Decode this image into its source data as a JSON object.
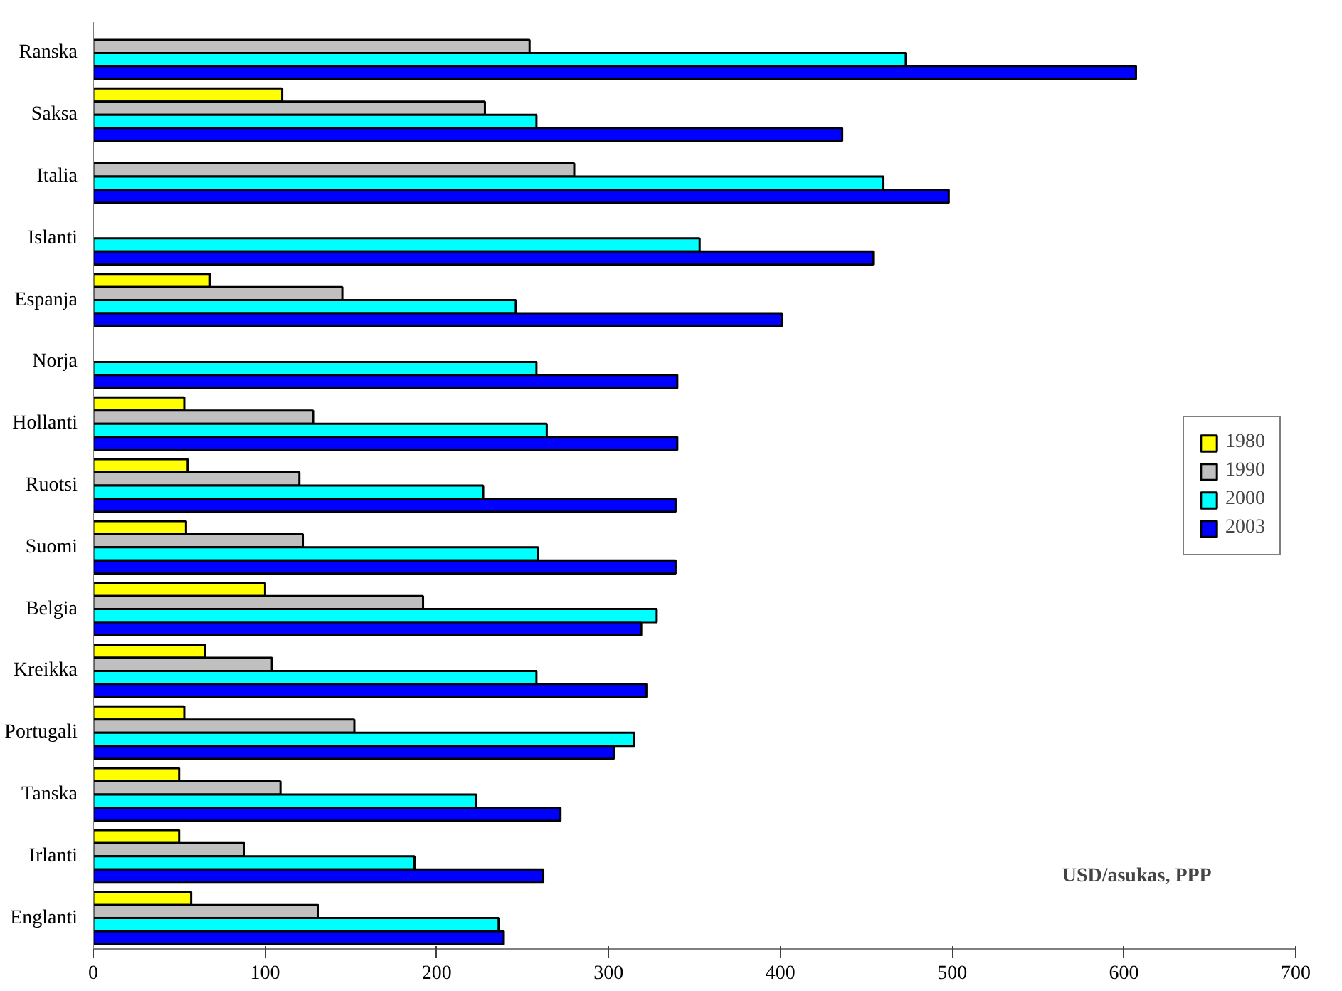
{
  "chart_data": {
    "type": "bar",
    "orientation": "horizontal",
    "categories": [
      "Ranska",
      "Saksa",
      "Italia",
      "Islanti",
      "Espanja",
      "Norja",
      "Hollanti",
      "Ruotsi",
      "Suomi",
      "Belgia",
      "Kreikka",
      "Portugali",
      "Tanska",
      "Irlanti",
      "Englanti"
    ],
    "series": [
      {
        "name": "1980",
        "color": "#ffff00",
        "values": [
          null,
          110,
          null,
          null,
          68,
          null,
          53,
          55,
          54,
          100,
          65,
          53,
          50,
          50,
          57
        ]
      },
      {
        "name": "1990",
        "color": "#c0c0c0",
        "values": [
          254,
          228,
          280,
          null,
          145,
          null,
          128,
          120,
          122,
          192,
          104,
          152,
          109,
          88,
          131
        ]
      },
      {
        "name": "2000",
        "color": "#00ffff",
        "values": [
          473,
          258,
          460,
          353,
          246,
          258,
          264,
          227,
          259,
          328,
          258,
          315,
          223,
          187,
          236
        ]
      },
      {
        "name": "2003",
        "color": "#0000ff",
        "values": [
          607,
          436,
          498,
          454,
          401,
          340,
          340,
          339,
          339,
          319,
          322,
          303,
          272,
          262,
          239
        ]
      }
    ],
    "xlim": [
      0,
      700
    ],
    "xticks": [
      0,
      100,
      200,
      300,
      400,
      500,
      600,
      700
    ],
    "annotations": [
      "USD/asukas, PPP"
    ],
    "legend": "right",
    "grid": false
  }
}
